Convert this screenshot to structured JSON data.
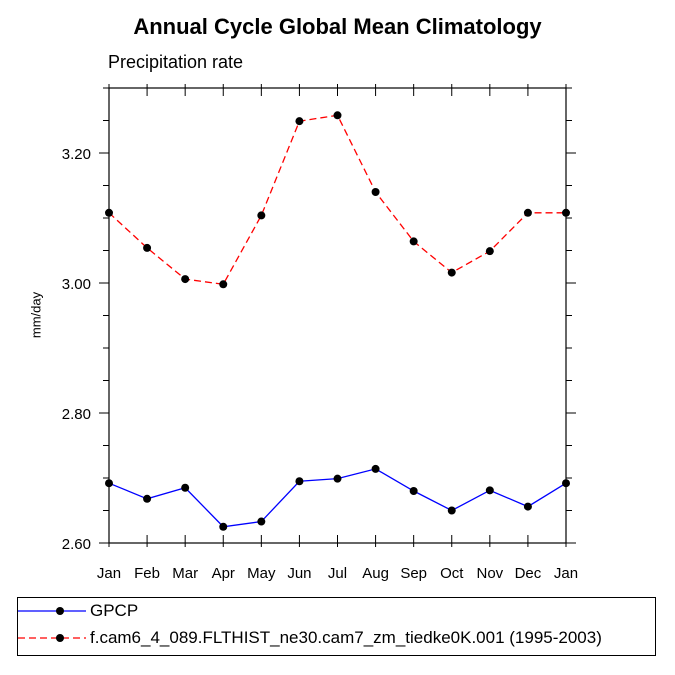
{
  "chart_data": {
    "type": "line",
    "title": "Annual Cycle Global Mean Climatology",
    "subtitle": "Precipitation rate",
    "xlabel": "",
    "ylabel": "mm/day",
    "categories": [
      "Jan",
      "Feb",
      "Mar",
      "Apr",
      "May",
      "Jun",
      "Jul",
      "Aug",
      "Sep",
      "Oct",
      "Nov",
      "Dec",
      "Jan"
    ],
    "ylim": [
      2.6,
      3.3
    ],
    "yticks": [
      2.6,
      2.8,
      3.0,
      3.2
    ],
    "ytick_labels": [
      "2.60",
      "2.80",
      "3.00",
      "3.20"
    ],
    "grid": false,
    "legend_position": "bottom",
    "series": [
      {
        "name": "GPCP",
        "color": "#0000ff",
        "line_style": "solid",
        "values": [
          2.692,
          2.668,
          2.685,
          2.625,
          2.633,
          2.695,
          2.699,
          2.714,
          2.68,
          2.65,
          2.681,
          2.656,
          2.692
        ]
      },
      {
        "name": "f.cam6_4_089.FLTHIST_ne30.cam7_zm_tiedke0K.001 (1995-2003)",
        "color": "#ff0000",
        "line_style": "dashed",
        "values": [
          3.108,
          3.054,
          3.006,
          2.998,
          3.104,
          3.249,
          3.258,
          3.14,
          3.064,
          3.016,
          3.049,
          3.108,
          3.108
        ]
      }
    ]
  }
}
